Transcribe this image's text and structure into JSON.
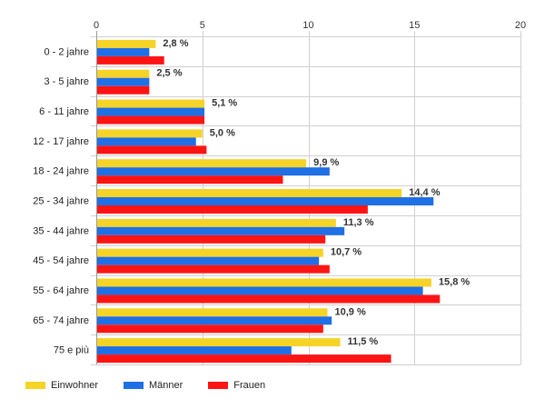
{
  "chart_data": {
    "type": "bar",
    "orientation": "horizontal",
    "categories": [
      "0 - 2 jahre",
      "3 - 5 jahre",
      "6 - 11 jahre",
      "12 - 17 jahre",
      "18 - 24 jahre",
      "25 - 34 jahre",
      "35 - 44 jahre",
      "45 - 54 jahre",
      "55 - 64 jahre",
      "65 - 74 jahre",
      "75 e più"
    ],
    "series": [
      {
        "name": "Einwohner",
        "color": "#f5d327",
        "values": [
          2.8,
          2.5,
          5.1,
          5.0,
          9.9,
          14.4,
          11.3,
          10.7,
          15.8,
          10.9,
          11.5
        ]
      },
      {
        "name": "Männer",
        "color": "#1f6fe5",
        "values": [
          2.5,
          2.5,
          5.1,
          4.7,
          11.0,
          15.9,
          11.7,
          10.5,
          15.4,
          11.1,
          9.2
        ]
      },
      {
        "name": "Frauen",
        "color": "#ff1414",
        "values": [
          3.2,
          2.5,
          5.1,
          5.2,
          8.8,
          12.8,
          10.8,
          11.0,
          16.2,
          10.7,
          13.9
        ]
      }
    ],
    "data_labels": [
      "2,8 %",
      "2,5 %",
      "5,1 %",
      "5,0 %",
      "9,9 %",
      "14,4 %",
      "11,3 %",
      "10,7 %",
      "15,8 %",
      "10,9 %",
      "11,5 %"
    ],
    "xlim": [
      0,
      20
    ],
    "xticks": [
      0,
      5,
      10,
      15,
      20
    ],
    "xaxis_position": "top",
    "grid": true,
    "legend_position": "bottom-left",
    "title": "",
    "xlabel": "",
    "ylabel": ""
  }
}
